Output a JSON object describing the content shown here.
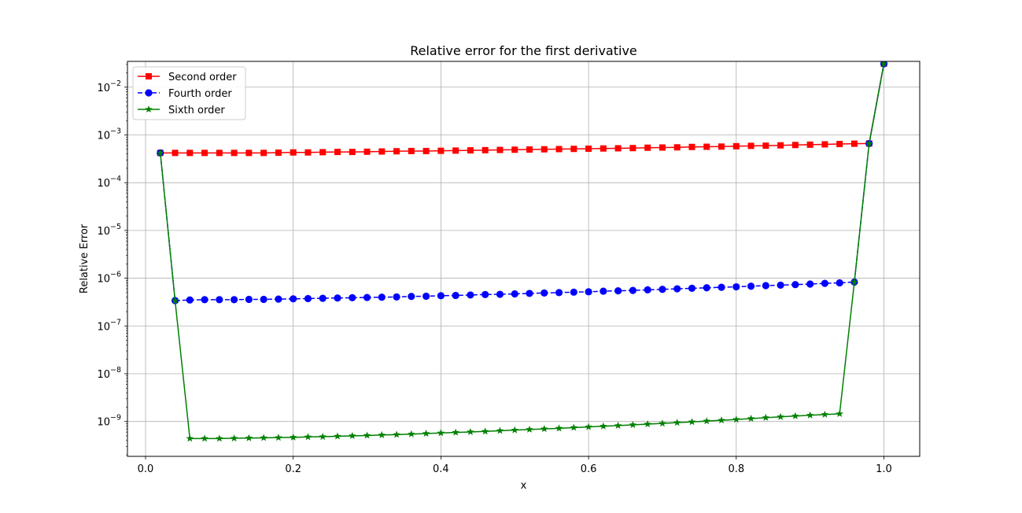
{
  "chart_data": {
    "type": "line",
    "title": "Relative error for the first derivative",
    "xlabel": "x",
    "ylabel": "Relative Error",
    "xlim": [
      -0.0245,
      1.0485
    ],
    "ylim_log10": [
      -9.73,
      -1.46
    ],
    "yscale": "log",
    "grid": true,
    "legend_position": "top-left",
    "x_ticks": [
      0.0,
      0.2,
      0.4,
      0.6,
      0.8,
      1.0
    ],
    "x_tick_labels": [
      "0.0",
      "0.2",
      "0.4",
      "0.6",
      "0.8",
      "1.0"
    ],
    "y_ticks_exp": [
      -9,
      -8,
      -7,
      -6,
      -5,
      -4,
      -3,
      -2
    ],
    "y_tick_labels": [
      "10",
      "10",
      "10",
      "10",
      "10",
      "10",
      "10",
      "10"
    ],
    "y_tick_superscripts": [
      "−9",
      "−8",
      "−7",
      "−6",
      "−5",
      "−4",
      "−3",
      "−2"
    ],
    "series": [
      {
        "name": "Second order",
        "color": "#ff0000",
        "marker": "square",
        "linestyle": "solid",
        "x": [
          0.02,
          0.04,
          0.06,
          0.08,
          0.1,
          0.12,
          0.14,
          0.16,
          0.18,
          0.2,
          0.22,
          0.24,
          0.26,
          0.28,
          0.3,
          0.32,
          0.34,
          0.36,
          0.38,
          0.4,
          0.42,
          0.44,
          0.46,
          0.48,
          0.5,
          0.52,
          0.54,
          0.56,
          0.58,
          0.6,
          0.62,
          0.64,
          0.66,
          0.68,
          0.7,
          0.72,
          0.74,
          0.76,
          0.78,
          0.8,
          0.82,
          0.84,
          0.86,
          0.88,
          0.9,
          0.92,
          0.94,
          0.96,
          0.98,
          1.0
        ],
        "y": [
          0.00042,
          0.00042,
          0.00042,
          0.00042,
          0.00042,
          0.00042,
          0.00042,
          0.00042,
          0.000425,
          0.00043,
          0.00043,
          0.000435,
          0.00044,
          0.00044,
          0.000445,
          0.00045,
          0.000455,
          0.00046,
          0.00046,
          0.000465,
          0.00047,
          0.000475,
          0.00048,
          0.000485,
          0.00049,
          0.000495,
          0.0005,
          0.000505,
          0.00051,
          0.000515,
          0.00052,
          0.000525,
          0.00053,
          0.00054,
          0.000545,
          0.00055,
          0.00056,
          0.000565,
          0.00057,
          0.00058,
          0.00059,
          0.000595,
          0.000605,
          0.000615,
          0.000625,
          0.000635,
          0.000645,
          0.000655,
          0.00066,
          0.031
        ]
      },
      {
        "name": "Fourth order",
        "color": "#0000ff",
        "marker": "circle",
        "linestyle": "dashed",
        "x": [
          0.02,
          0.04,
          0.06,
          0.08,
          0.1,
          0.12,
          0.14,
          0.16,
          0.18,
          0.2,
          0.22,
          0.24,
          0.26,
          0.28,
          0.3,
          0.32,
          0.34,
          0.36,
          0.38,
          0.4,
          0.42,
          0.44,
          0.46,
          0.48,
          0.5,
          0.52,
          0.54,
          0.56,
          0.58,
          0.6,
          0.62,
          0.64,
          0.66,
          0.68,
          0.7,
          0.72,
          0.74,
          0.76,
          0.78,
          0.8,
          0.82,
          0.84,
          0.86,
          0.88,
          0.9,
          0.92,
          0.94,
          0.96,
          0.98,
          1.0
        ],
        "y": [
          0.00042,
          3.4e-07,
          3.5e-07,
          3.55e-07,
          3.55e-07,
          3.55e-07,
          3.6e-07,
          3.6e-07,
          3.65e-07,
          3.7e-07,
          3.75e-07,
          3.8e-07,
          3.85e-07,
          3.9e-07,
          3.95e-07,
          4e-07,
          4.05e-07,
          4.15e-07,
          4.2e-07,
          4.3e-07,
          4.35e-07,
          4.45e-07,
          4.55e-07,
          4.6e-07,
          4.7e-07,
          4.8e-07,
          4.9e-07,
          5e-07,
          5.1e-07,
          5.2e-07,
          5.35e-07,
          5.45e-07,
          5.55e-07,
          5.7e-07,
          5.85e-07,
          6e-07,
          6.15e-07,
          6.3e-07,
          6.45e-07,
          6.6e-07,
          6.8e-07,
          7e-07,
          7.15e-07,
          7.35e-07,
          7.55e-07,
          7.8e-07,
          8e-07,
          8.3e-07,
          0.00066,
          0.031
        ]
      },
      {
        "name": "Sixth order",
        "color": "#008000",
        "marker": "star",
        "linestyle": "solid",
        "x": [
          0.02,
          0.04,
          0.06,
          0.08,
          0.1,
          0.12,
          0.14,
          0.16,
          0.18,
          0.2,
          0.22,
          0.24,
          0.26,
          0.28,
          0.3,
          0.32,
          0.34,
          0.36,
          0.38,
          0.4,
          0.42,
          0.44,
          0.46,
          0.48,
          0.5,
          0.52,
          0.54,
          0.56,
          0.58,
          0.6,
          0.62,
          0.64,
          0.66,
          0.68,
          0.7,
          0.72,
          0.74,
          0.76,
          0.78,
          0.8,
          0.82,
          0.84,
          0.86,
          0.88,
          0.9,
          0.92,
          0.94,
          0.96,
          0.98,
          1.0
        ],
        "y": [
          0.00042,
          3.4e-07,
          4.4e-10,
          4.4e-10,
          4.4e-10,
          4.45e-10,
          4.5e-10,
          4.55e-10,
          4.6e-10,
          4.65e-10,
          4.75e-10,
          4.8e-10,
          4.9e-10,
          5e-10,
          5.1e-10,
          5.2e-10,
          5.3e-10,
          5.45e-10,
          5.6e-10,
          5.75e-10,
          5.9e-10,
          6.05e-10,
          6.2e-10,
          6.4e-10,
          6.6e-10,
          6.8e-10,
          7e-10,
          7.2e-10,
          7.45e-10,
          7.7e-10,
          7.95e-10,
          8.2e-10,
          8.5e-10,
          8.8e-10,
          9.1e-10,
          9.45e-10,
          9.8e-10,
          1.02e-09,
          1.06e-09,
          1.1e-09,
          1.15e-09,
          1.2e-09,
          1.25e-09,
          1.3e-09,
          1.35e-09,
          1.4e-09,
          1.45e-09,
          8.3e-07,
          0.00066,
          0.031
        ]
      }
    ]
  }
}
